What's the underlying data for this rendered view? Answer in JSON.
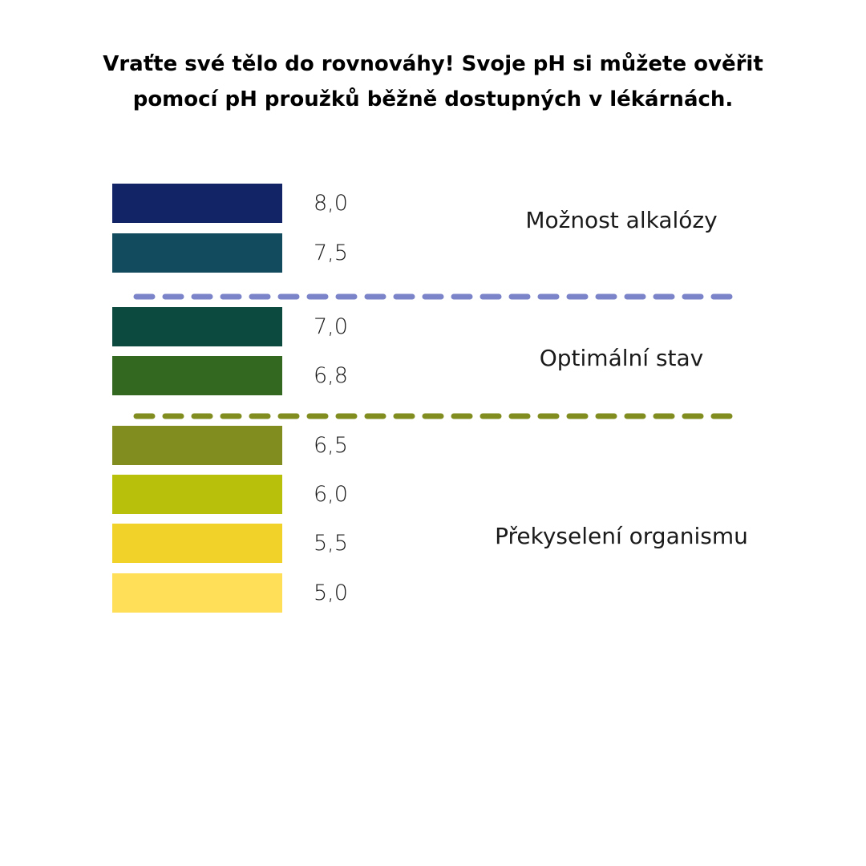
{
  "title": {
    "line1": "Vraťte své tělo do rovnováhy! Svoje pH si můžete ověřit",
    "line2": "pomocí pH proužků běžně dostupných v lékárnách."
  },
  "scale": [
    {
      "value": "8,0",
      "color": "#122366"
    },
    {
      "value": "7,5",
      "color": "#124a5e"
    },
    {
      "value": "7,0",
      "color": "#0c4a40"
    },
    {
      "value": "6,8",
      "color": "#336820"
    },
    {
      "value": "6,5",
      "color": "#828d20"
    },
    {
      "value": "6,0",
      "color": "#b8c00c"
    },
    {
      "value": "5,5",
      "color": "#f0d228"
    },
    {
      "value": "5,0",
      "color": "#ffde58"
    }
  ],
  "zones": [
    {
      "label": "Možnost alkalózy"
    },
    {
      "label": "Optimální stav"
    },
    {
      "label": "Překyselení organismu"
    }
  ],
  "dividers": [
    {
      "color": "#7b84c8"
    },
    {
      "color": "#828d20"
    }
  ]
}
